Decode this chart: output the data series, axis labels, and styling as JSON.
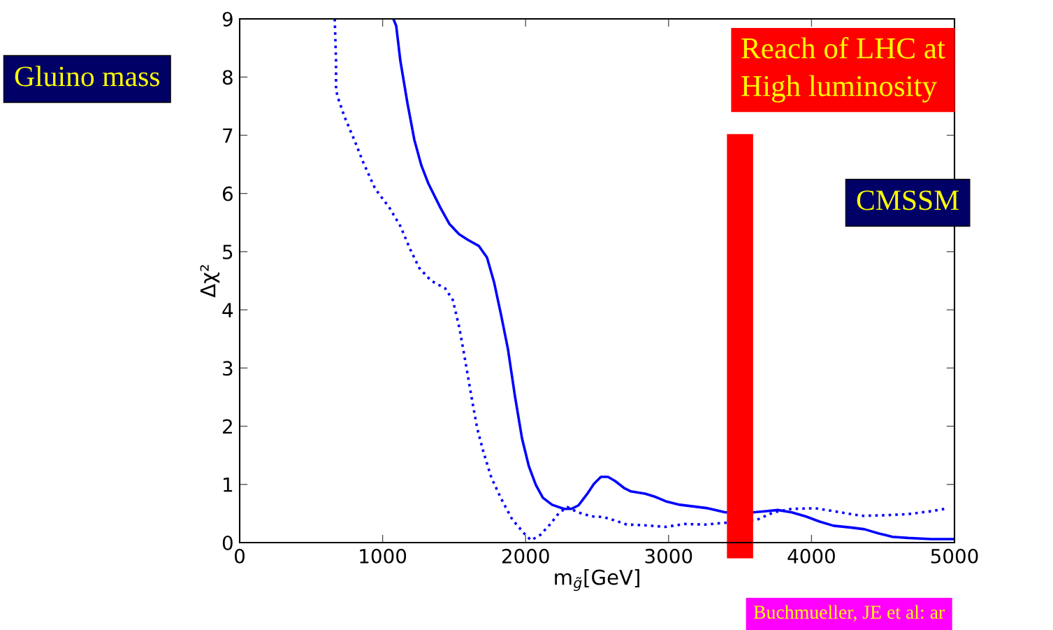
{
  "chart_data": {
    "type": "line",
    "xlabel": "m$_{g̃}$[GeV]",
    "ylabel": "Δχ²",
    "xlim": [
      0,
      5000
    ],
    "ylim": [
      0,
      9
    ],
    "xticks": [
      0,
      1000,
      2000,
      3000,
      4000,
      5000
    ],
    "yticks": [
      0,
      1,
      2,
      3,
      4,
      5,
      6,
      7,
      8,
      9
    ],
    "grid": false,
    "legend": false,
    "series": [
      {
        "color": "#0000ff",
        "line_style": "solid",
        "x": [
          1075,
          1095,
          1124,
          1173,
          1222,
          1271,
          1320,
          1403,
          1466,
          1535,
          1598,
          1672,
          1730,
          1779,
          1828,
          1877,
          1926,
          1975,
          2023,
          2072,
          2121,
          2185,
          2268,
          2322,
          2370,
          2429,
          2478,
          2527,
          2576,
          2625,
          2688,
          2737,
          2835,
          2903,
          2981,
          3079,
          3177,
          3275,
          3397,
          3592,
          3685,
          3764,
          3861,
          3959,
          4057,
          4154,
          4272,
          4370,
          4467,
          4565,
          4677,
          4839,
          4995
        ],
        "values": [
          9.0,
          8.88,
          8.28,
          7.56,
          6.92,
          6.48,
          6.17,
          5.76,
          5.48,
          5.3,
          5.2,
          5.1,
          4.9,
          4.48,
          3.92,
          3.32,
          2.51,
          1.79,
          1.31,
          0.99,
          0.77,
          0.65,
          0.58,
          0.58,
          0.64,
          0.83,
          1.01,
          1.13,
          1.13,
          1.06,
          0.94,
          0.88,
          0.84,
          0.79,
          0.71,
          0.65,
          0.62,
          0.59,
          0.52,
          0.52,
          0.54,
          0.56,
          0.52,
          0.45,
          0.36,
          0.29,
          0.26,
          0.23,
          0.16,
          0.1,
          0.08,
          0.06,
          0.06
        ]
      },
      {
        "color": "#0000ff",
        "line_style": "dotted",
        "x": [
          665,
          674,
          674,
          684,
          733,
          802,
          865,
          948,
          1046,
          1124,
          1193,
          1256,
          1339,
          1437,
          1491,
          1535,
          1564,
          1598,
          1632,
          1662,
          1706,
          1760,
          1828,
          1906,
          1989,
          2038,
          2102,
          2170,
          2234,
          2292,
          2366,
          2463,
          2542,
          2625,
          2708,
          2820,
          2981,
          3113,
          3260,
          3392,
          3617,
          3734,
          3861,
          4027,
          4154,
          4350,
          4516,
          4677,
          4839,
          4956
        ],
        "values": [
          9.0,
          8.28,
          7.8,
          7.67,
          7.32,
          6.92,
          6.53,
          6.08,
          5.76,
          5.44,
          5.04,
          4.72,
          4.5,
          4.37,
          4.17,
          3.71,
          3.32,
          2.84,
          2.36,
          1.96,
          1.55,
          1.12,
          0.76,
          0.4,
          0.16,
          0.04,
          0.13,
          0.31,
          0.51,
          0.61,
          0.52,
          0.45,
          0.44,
          0.38,
          0.31,
          0.3,
          0.27,
          0.32,
          0.31,
          0.34,
          0.39,
          0.52,
          0.58,
          0.59,
          0.54,
          0.46,
          0.47,
          0.49,
          0.54,
          0.59
        ]
      }
    ],
    "ref_lines": [
      {
        "axis": "x",
        "value": 3500,
        "label": "Reach of LHC at\nHigh luminosity",
        "color": "#ff0000"
      }
    ],
    "annotations": [
      "Gluino mass",
      "CMSSM",
      "Buchmueller, JE et al: ar"
    ]
  }
}
